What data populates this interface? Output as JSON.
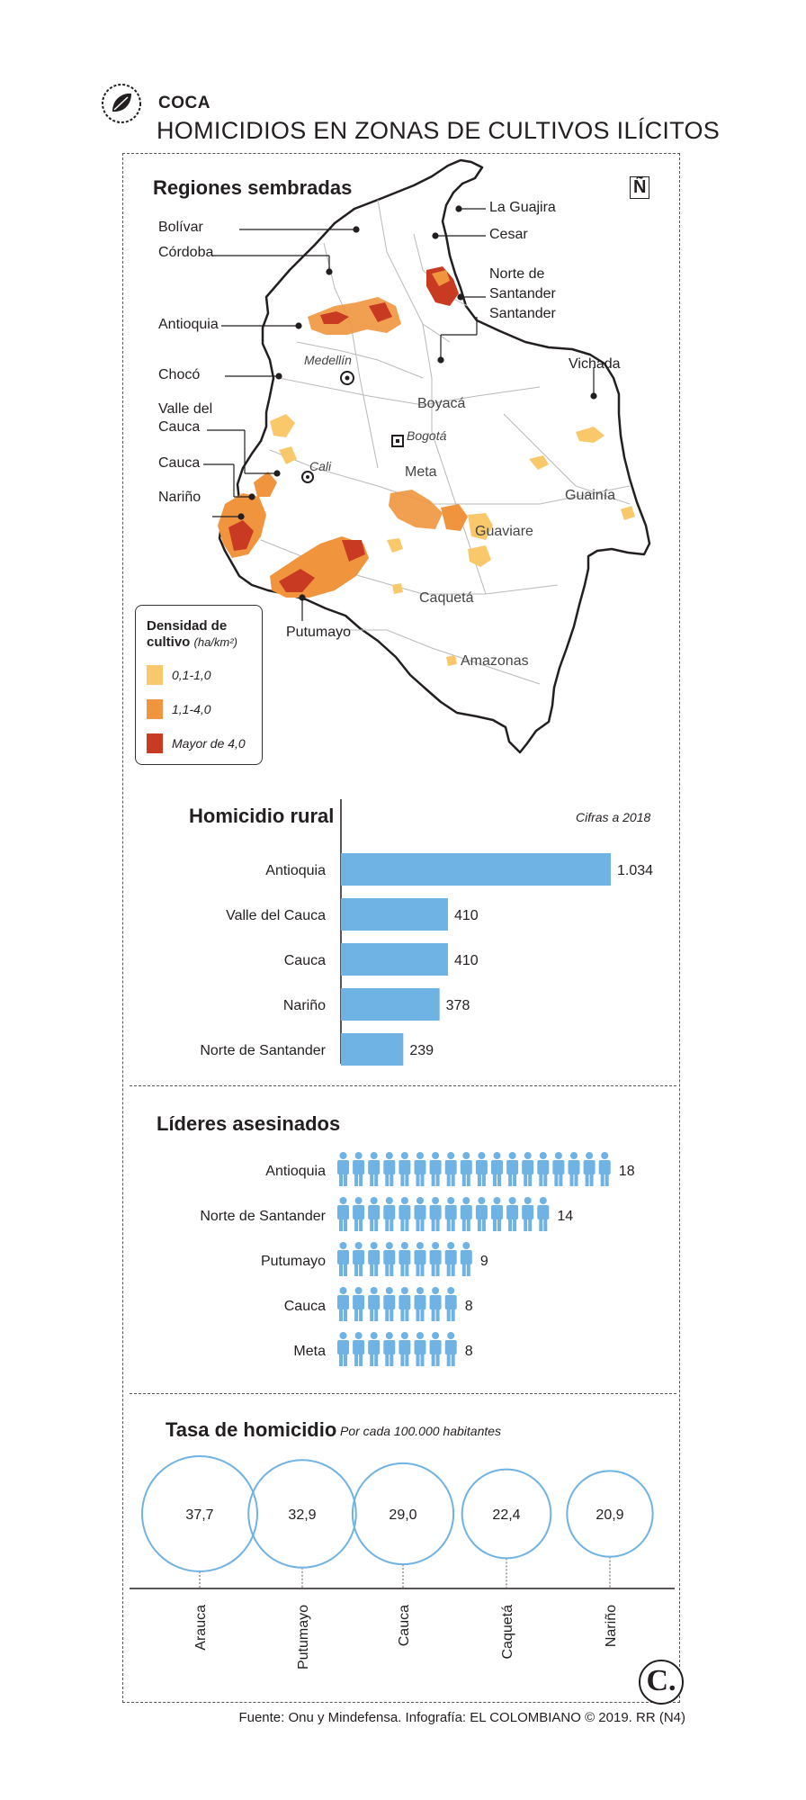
{
  "header": {
    "kicker": "COCA",
    "title": "HOMICIDIOS EN ZONAS DE CULTIVOS ILÍCITOS"
  },
  "map": {
    "title": "Regiones sembradas",
    "north_symbol": "Ñ",
    "labels": {
      "bolivar": "Bolívar",
      "cordoba": "Córdoba",
      "antioquia": "Antioquia",
      "choco": "Chocó",
      "valle1": "Valle del",
      "valle2": "Cauca",
      "cauca": "Cauca",
      "narino": "Nariño",
      "putumayo": "Putumayo",
      "guajira": "La Guajira",
      "cesar": "Cesar",
      "nds1": "Norte de",
      "nds2": "Santander",
      "santander": "Santander",
      "vichada": "Vichada",
      "boyaca": "Boyacá",
      "meta": "Meta",
      "guainia": "Guainía",
      "guaviare": "Guaviare",
      "caqueta": "Caquetá",
      "amazonas": "Amazonas",
      "medellin": "Medellín",
      "bogota": "Bogotá",
      "cali": "Cali"
    },
    "legend": {
      "title1": "Densidad de",
      "title2": "cultivo",
      "unit": "(ha/km²)",
      "items": [
        {
          "label": "0,1-1,0",
          "color": "#f9c86a"
        },
        {
          "label": "1,1-4,0",
          "color": "#f0953e"
        },
        {
          "label": "Mayor de 4,0",
          "color": "#c83a22"
        }
      ]
    }
  },
  "chart_data": [
    {
      "type": "bar",
      "title": "Homicidio rural",
      "note": "Cifras a 2018",
      "categories": [
        "Antioquia",
        "Valle del Cauca",
        "Cauca",
        "Nariño",
        "Norte de Santander"
      ],
      "values": [
        1034,
        410,
        410,
        378,
        239
      ],
      "value_labels": [
        "1.034",
        "410",
        "410",
        "378",
        "239"
      ],
      "color": "#6fb2e4"
    },
    {
      "type": "bar",
      "title": "Líderes asesinados",
      "categories": [
        "Antioquia",
        "Norte de Santander",
        "Putumayo",
        "Cauca",
        "Meta"
      ],
      "values": [
        18,
        14,
        9,
        8,
        8
      ],
      "value_labels": [
        "18",
        "14",
        "9",
        "8",
        "8"
      ],
      "color": "#6fb2e4"
    },
    {
      "type": "scatter",
      "title": "Tasa de homicidio",
      "subtitle": "Por cada 100.000 habitantes",
      "categories": [
        "Arauca",
        "Putumayo",
        "Cauca",
        "Caquetá",
        "Nariño"
      ],
      "values": [
        37.7,
        32.9,
        29.0,
        22.4,
        20.9
      ],
      "value_labels": [
        "37,7",
        "32,9",
        "29,0",
        "22,4",
        "20,9"
      ],
      "color": "#6fb2e4"
    }
  ],
  "footer": {
    "source": "Fuente: Onu y Mindefensa. Infografía: EL COLOMBIANO © 2019. RR (N4)",
    "logo": "C."
  }
}
